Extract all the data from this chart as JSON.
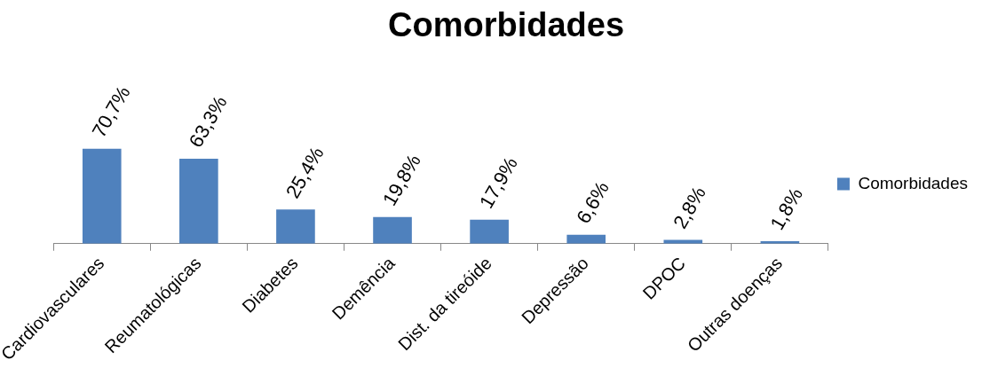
{
  "chart_data": {
    "type": "bar",
    "title": "Comorbidades",
    "categories": [
      "Cardiovasculares",
      "Reumatológicas",
      "Diabetes",
      "Demência",
      "Dist. da tireóide",
      "Depressão",
      "DPOC",
      "Outras doenças"
    ],
    "series": [
      {
        "name": "Comorbidades",
        "color": "#4f81bd",
        "values": [
          70.7,
          63.3,
          25.4,
          19.8,
          17.9,
          6.6,
          2.8,
          1.8
        ],
        "value_labels": [
          "70,7%",
          "63,3%",
          "25,4%",
          "19,8%",
          "17,9%",
          "6,6%",
          "2,8%",
          "1,8%"
        ]
      }
    ],
    "legend": "right",
    "grid": false
  }
}
